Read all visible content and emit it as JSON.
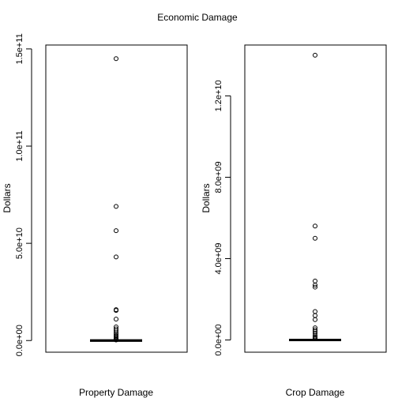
{
  "main_title": "Economic Damage",
  "chart_data": [
    {
      "type": "boxplot",
      "xlabel": "Property Damage",
      "ylabel": "Dollars",
      "ylim": [
        -6000000000,
        152000000000
      ],
      "ytick_values": [
        0,
        50000000000,
        100000000000,
        150000000000
      ],
      "ytick_labels": [
        "0.0e+00",
        "5.0e+10",
        "1.0e+11",
        "1.5e+11"
      ],
      "box": {
        "q1": 0,
        "median": 0,
        "q3": 0,
        "whisker_low": 0,
        "whisker_high": 0
      },
      "outliers": [
        145000000000,
        69000000000,
        56500000000,
        43000000000,
        15900000000,
        15500000000,
        11000000000,
        7000000000,
        6000000000,
        5000000000,
        4000000000,
        3200000000,
        2500000000,
        1800000000,
        1200000000,
        700000000,
        300000000
      ]
    },
    {
      "type": "boxplot",
      "xlabel": "Crop Damage",
      "ylabel": "Dollars",
      "ylim": [
        -600000000,
        14500000000
      ],
      "ytick_values": [
        0,
        4000000000,
        8000000000,
        12000000000
      ],
      "ytick_labels": [
        "0.0e+00",
        "4.0e+09",
        "8.0e+09",
        "1.2e+10"
      ],
      "box": {
        "q1": 0,
        "median": 0,
        "q3": 0,
        "whisker_low": 0,
        "whisker_high": 0
      },
      "outliers": [
        14000000000,
        5600000000,
        5000000000,
        2900000000,
        2700000000,
        2600000000,
        1400000000,
        1200000000,
        1000000000,
        600000000,
        500000000,
        420000000,
        330000000,
        230000000,
        160000000,
        100000000,
        60000000
      ]
    }
  ]
}
